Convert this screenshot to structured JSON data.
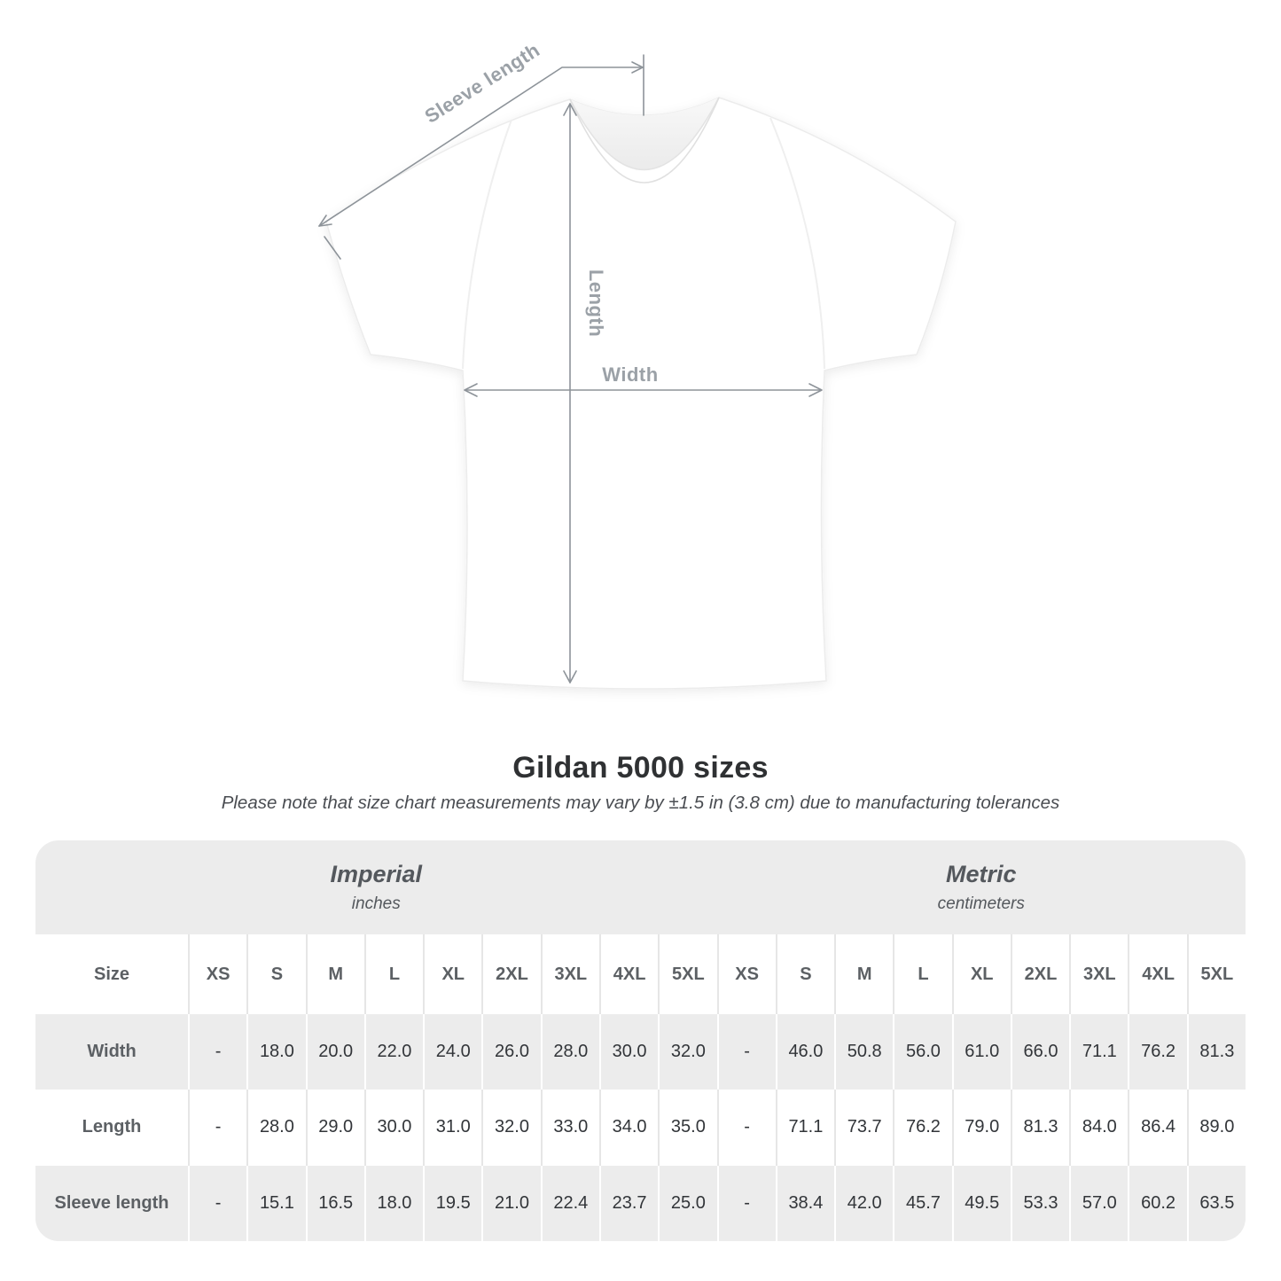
{
  "title": "Gildan 5000 sizes",
  "subtitle": "Please note that size chart measurements may vary by ±1.5 in (3.8 cm) due to manufacturing tolerances",
  "diagram": {
    "sleeve_length_label": "Sleeve length",
    "length_label": "Length",
    "width_label": "Width",
    "shirt_color": "#ffffff",
    "annotation_color": "#9ba1a7"
  },
  "chart_data": {
    "type": "table",
    "title": "Gildan 5000 sizes",
    "note": "Please note that size chart measurements may vary by ±1.5 in (3.8 cm) due to manufacturing tolerances",
    "row_header": "Size",
    "row_labels": [
      "Width",
      "Length",
      "Sleeve length"
    ],
    "sections": [
      {
        "name": "Imperial",
        "unit": "inches",
        "columns": [
          "XS",
          "S",
          "M",
          "L",
          "XL",
          "2XL",
          "3XL",
          "4XL",
          "5XL"
        ],
        "rows": {
          "Width": [
            "-",
            "18.0",
            "20.0",
            "22.0",
            "24.0",
            "26.0",
            "28.0",
            "30.0",
            "32.0"
          ],
          "Length": [
            "-",
            "28.0",
            "29.0",
            "30.0",
            "31.0",
            "32.0",
            "33.0",
            "34.0",
            "35.0"
          ],
          "Sleeve length": [
            "-",
            "15.1",
            "16.5",
            "18.0",
            "19.5",
            "21.0",
            "22.4",
            "23.7",
            "25.0"
          ]
        }
      },
      {
        "name": "Metric",
        "unit": "centimeters",
        "columns": [
          "XS",
          "S",
          "M",
          "L",
          "XL",
          "2XL",
          "3XL",
          "4XL",
          "5XL"
        ],
        "rows": {
          "Width": [
            "-",
            "46.0",
            "50.8",
            "56.0",
            "61.0",
            "66.0",
            "71.1",
            "76.2",
            "81.3"
          ],
          "Length": [
            "-",
            "71.1",
            "73.7",
            "76.2",
            "79.0",
            "81.3",
            "84.0",
            "86.4",
            "89.0"
          ],
          "Sleeve length": [
            "-",
            "38.4",
            "42.0",
            "45.7",
            "49.5",
            "53.3",
            "57.0",
            "60.2",
            "63.5"
          ]
        }
      }
    ],
    "layout": {
      "band_gray": "#ececec",
      "grid_on": false,
      "legend": "none"
    }
  }
}
